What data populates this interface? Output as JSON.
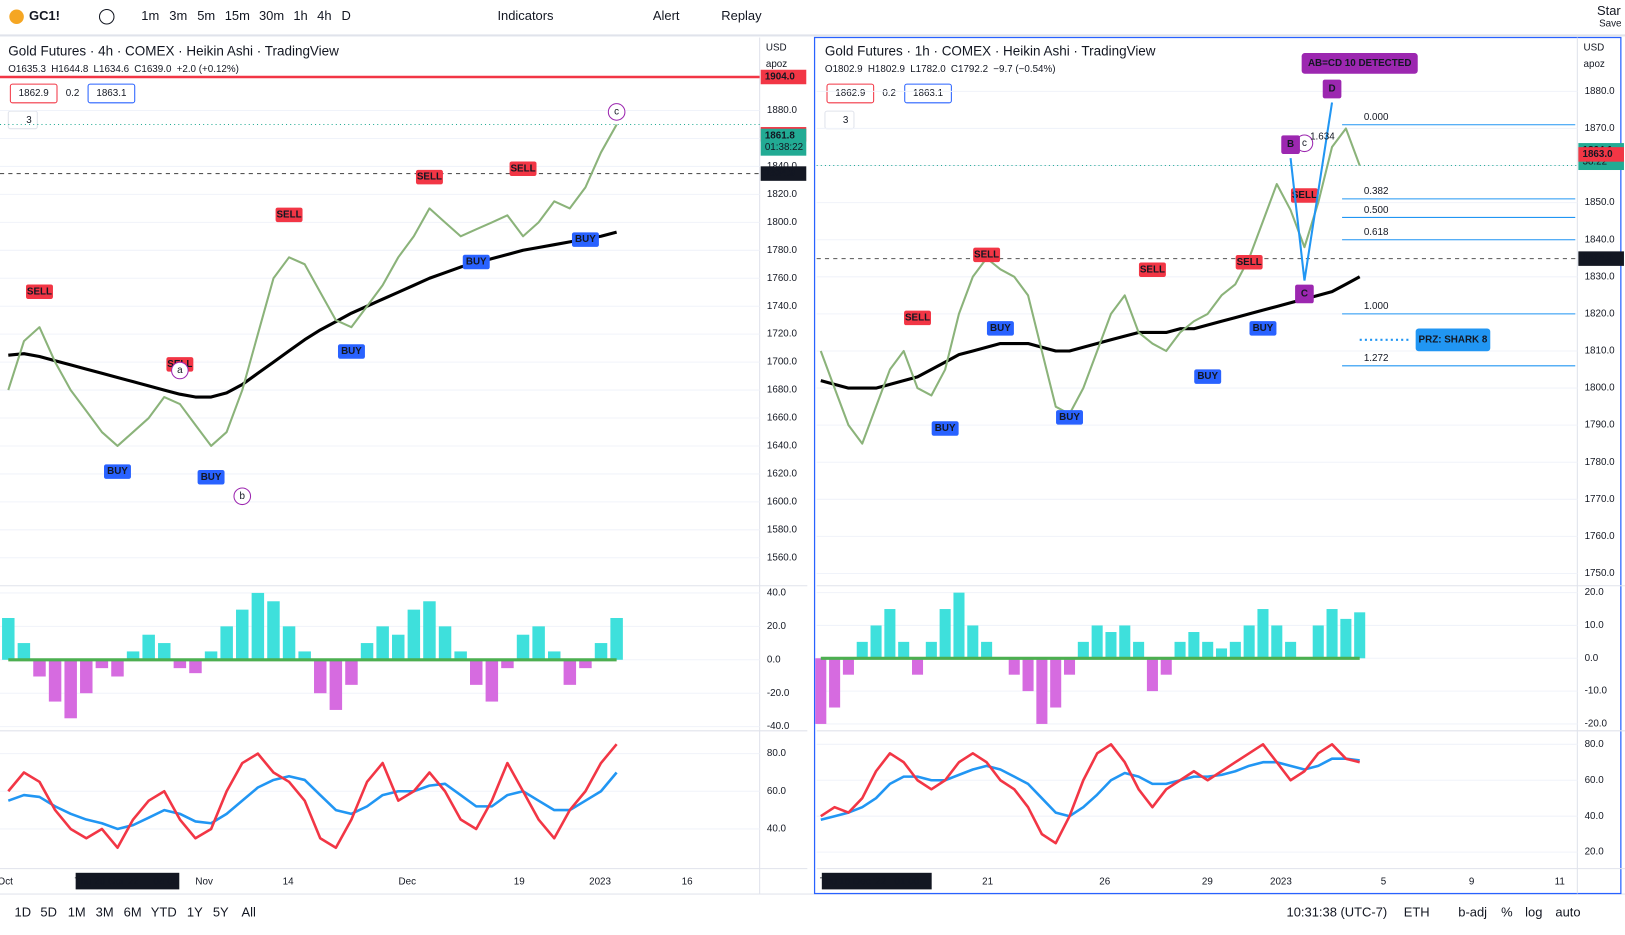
{
  "toolbar": {
    "symbol": "GC1!",
    "intervals": [
      "1m",
      "3m",
      "5m",
      "15m",
      "30m",
      "1h",
      "4h",
      "D"
    ],
    "indicators": "Indicators",
    "alert": "Alert",
    "replay": "Replay",
    "layout_name": "Star",
    "save": "Save"
  },
  "panels": [
    {
      "title": "Gold Futures · 4h · COMEX · Heikin Ashi · TradingView",
      "ohlc": [
        "O1635.3",
        "H1644.8",
        "L1634.6",
        "C1639.0",
        "+2.0 (+0.12%)"
      ],
      "boxes": [
        "1862.9",
        "0.2",
        "1863.1"
      ],
      "legend_count": "3",
      "currency": "USD",
      "scale_mode": "apoz",
      "price": {
        "ylim": [
          1540,
          1933
        ],
        "yticks": [
          {
            "value": 1560,
            "label": "1560.0"
          },
          {
            "value": 1580,
            "label": "1580.0"
          },
          {
            "value": 1600,
            "label": "1600.0"
          },
          {
            "value": 1620,
            "label": "1620.0"
          },
          {
            "value": 1640,
            "label": "1640.0"
          },
          {
            "value": 1660,
            "label": "1660.0"
          },
          {
            "value": 1680,
            "label": "1680.0"
          },
          {
            "value": 1700,
            "label": "1700.0"
          },
          {
            "value": 1720,
            "label": "1720.0"
          },
          {
            "value": 1740,
            "label": "1740.0"
          },
          {
            "value": 1760,
            "label": "1760.0"
          },
          {
            "value": 1780,
            "label": "1780.0"
          },
          {
            "value": 1800,
            "label": "1800.0"
          },
          {
            "value": 1820,
            "label": "1820.0"
          },
          {
            "value": 1840,
            "label": "1840.0"
          },
          {
            "value": 1860,
            "label": "1860.0"
          },
          {
            "value": 1880,
            "label": "1880.0"
          }
        ],
        "close": [
          1680,
          1715,
          1725,
          1700,
          1680,
          1665,
          1650,
          1640,
          1650,
          1660,
          1675,
          1670,
          1655,
          1640,
          1650,
          1680,
          1720,
          1760,
          1775,
          1770,
          1750,
          1730,
          1725,
          1740,
          1755,
          1775,
          1790,
          1810,
          1800,
          1790,
          1795,
          1800,
          1805,
          1790,
          1800,
          1815,
          1810,
          1825,
          1850,
          1870
        ],
        "ma": [
          1705,
          1706,
          1704,
          1701,
          1698,
          1695,
          1692,
          1689,
          1686,
          1683,
          1680,
          1677,
          1675,
          1675,
          1678,
          1684,
          1692,
          1700,
          1708,
          1716,
          1723,
          1729,
          1735,
          1740,
          1745,
          1750,
          1755,
          1760,
          1764,
          1768,
          1771,
          1774,
          1777,
          1780,
          1782,
          1784,
          1786,
          1788,
          1790,
          1793
        ]
      },
      "oscillator": {
        "ylim": [
          -42.5,
          44.3
        ],
        "yticks": [
          {
            "value": 40,
            "label": "40.0"
          },
          {
            "value": 20,
            "label": "20.0"
          },
          {
            "value": 0,
            "label": "0.0"
          },
          {
            "value": -20,
            "label": "-20.0"
          },
          {
            "value": -40,
            "label": "-40.0"
          }
        ],
        "values": [
          25,
          10,
          -10,
          -25,
          -35,
          -20,
          -5,
          -10,
          5,
          15,
          10,
          -5,
          -8,
          5,
          20,
          30,
          40,
          35,
          20,
          5,
          -20,
          -30,
          -15,
          10,
          20,
          15,
          30,
          35,
          20,
          5,
          -15,
          -25,
          -5,
          15,
          20,
          5,
          -15,
          -5,
          10,
          25
        ]
      },
      "rsi": {
        "ylim": [
          18.9,
          92.1
        ],
        "yticks": [
          {
            "value": 80,
            "label": "80.0"
          },
          {
            "value": 60,
            "label": "60.0"
          },
          {
            "value": 40,
            "label": "40.0"
          },
          {
            "value": 20,
            "label": "20.0"
          }
        ],
        "rsi": [
          60,
          70,
          65,
          50,
          40,
          35,
          40,
          30,
          45,
          55,
          60,
          45,
          35,
          40,
          60,
          75,
          80,
          70,
          65,
          55,
          35,
          30,
          45,
          65,
          75,
          55,
          60,
          70,
          60,
          45,
          40,
          55,
          75,
          60,
          45,
          35,
          50,
          60,
          75,
          85
        ],
        "signal": [
          55,
          58,
          57,
          52,
          48,
          45,
          43,
          40,
          42,
          46,
          50,
          48,
          44,
          43,
          48,
          55,
          62,
          66,
          68,
          66,
          58,
          50,
          48,
          52,
          58,
          60,
          60,
          63,
          64,
          58,
          52,
          52,
          58,
          60,
          55,
          50,
          50,
          55,
          60,
          70
        ]
      },
      "time_labels": [
        "Oct",
        "Thu 20 Oct '22",
        "04:00",
        "Nov",
        "14",
        "Dec",
        "19",
        "2023",
        "16"
      ],
      "signals": [
        {
          "label": "SELL",
          "bar": 2,
          "price": 1740
        },
        {
          "label": "BUY",
          "bar": 7,
          "price": 1632
        },
        {
          "label": "SELL",
          "bar": 11,
          "price": 1688
        },
        {
          "label": "BUY",
          "bar": 13,
          "price": 1628
        },
        {
          "label": "SELL",
          "bar": 18,
          "price": 1795
        },
        {
          "label": "BUY",
          "bar": 22,
          "price": 1718
        },
        {
          "label": "SELL",
          "bar": 27,
          "price": 1822
        },
        {
          "label": "BUY",
          "bar": 30,
          "price": 1782
        },
        {
          "label": "SELL",
          "bar": 33,
          "price": 1828
        },
        {
          "label": "BUY",
          "bar": 37,
          "price": 1798
        }
      ],
      "waves": [
        {
          "label": "a",
          "bar": 11,
          "price": 1694
        },
        {
          "label": "b",
          "bar": 15,
          "price": 1604
        },
        {
          "label": "c",
          "bar": 39,
          "price": 1879
        }
      ],
      "price_tags": [
        {
          "value": 1904.0,
          "label": "1904.0",
          "color": "#f23645"
        },
        {
          "value": 1863.0,
          "label": "1863.0",
          "color": "#f23645"
        },
        {
          "value": 1861.8,
          "label": "1861.8",
          "color": "#22ab94"
        },
        {
          "value": 1834.9,
          "label": "1834.9",
          "color": "#131722"
        }
      ],
      "countdown": "01:38:22"
    },
    {
      "title": "Gold Futures · 1h · COMEX · Heikin Ashi · TradingView",
      "ohlc": [
        "O1802.9",
        "H1802.9",
        "L1782.0",
        "C1792.2",
        "−9.7 (−0.54%)"
      ],
      "boxes": [
        "1862.9",
        "0.2",
        "1863.1"
      ],
      "legend_count": "3",
      "currency": "USD",
      "scale_mode": "apoz",
      "price": {
        "ylim": [
          1746.7,
          1894.8
        ],
        "yticks": [
          {
            "value": 1750,
            "label": "1750.0"
          },
          {
            "value": 1760,
            "label": "1760.0"
          },
          {
            "value": 1770,
            "label": "1770.0"
          },
          {
            "value": 1780,
            "label": "1780.0"
          },
          {
            "value": 1790,
            "label": "1790.0"
          },
          {
            "value": 1800,
            "label": "1800.0"
          },
          {
            "value": 1810,
            "label": "1810.0"
          },
          {
            "value": 1820,
            "label": "1820.0"
          },
          {
            "value": 1830,
            "label": "1830.0"
          },
          {
            "value": 1840,
            "label": "1840.0"
          },
          {
            "value": 1850,
            "label": "1850.0"
          },
          {
            "value": 1860,
            "label": "1860.0"
          },
          {
            "value": 1870,
            "label": "1870.0"
          },
          {
            "value": 1880,
            "label": "1880.0"
          }
        ],
        "close": [
          1810,
          1800,
          1790,
          1785,
          1795,
          1805,
          1810,
          1800,
          1798,
          1805,
          1820,
          1830,
          1835,
          1832,
          1830,
          1825,
          1810,
          1795,
          1793,
          1800,
          1810,
          1820,
          1825,
          1815,
          1812,
          1810,
          1815,
          1818,
          1820,
          1825,
          1828,
          1835,
          1845,
          1855,
          1848,
          1838,
          1850,
          1865,
          1870,
          1860
        ],
        "ma": [
          1802,
          1801,
          1800,
          1800,
          1800,
          1801,
          1802,
          1803,
          1805,
          1807,
          1809,
          1810,
          1811,
          1812,
          1812,
          1812,
          1811,
          1810,
          1810,
          1811,
          1812,
          1813,
          1814,
          1815,
          1815,
          1815,
          1816,
          1816,
          1817,
          1818,
          1819,
          1820,
          1821,
          1822,
          1823,
          1824,
          1825,
          1826,
          1828,
          1830
        ]
      },
      "oscillator": {
        "ylim": [
          -22.1,
          22.1
        ],
        "yticks": [
          {
            "value": 20,
            "label": "20.0"
          },
          {
            "value": 10,
            "label": "10.0"
          },
          {
            "value": 0,
            "label": "0.0"
          },
          {
            "value": -10,
            "label": "-10.0"
          },
          {
            "value": -20,
            "label": "-20.0"
          }
        ],
        "values": [
          -20,
          -15,
          -5,
          5,
          10,
          15,
          5,
          -5,
          5,
          15,
          20,
          10,
          5,
          0,
          -5,
          -10,
          -20,
          -15,
          -5,
          5,
          10,
          8,
          10,
          5,
          -10,
          -5,
          5,
          8,
          5,
          3,
          5,
          10,
          15,
          10,
          5,
          0,
          10,
          15,
          12,
          14
        ]
      },
      "rsi": {
        "ylim": [
          10.8,
          87.5
        ],
        "yticks": [
          {
            "value": 80,
            "label": "80.0"
          },
          {
            "value": 60,
            "label": "60.0"
          },
          {
            "value": 40,
            "label": "40.0"
          },
          {
            "value": 20,
            "label": "20.0"
          }
        ],
        "rsi": [
          40,
          45,
          42,
          50,
          65,
          75,
          70,
          60,
          55,
          60,
          70,
          75,
          70,
          60,
          55,
          45,
          30,
          25,
          40,
          60,
          75,
          80,
          70,
          55,
          45,
          55,
          60,
          65,
          60,
          65,
          70,
          75,
          80,
          70,
          60,
          65,
          75,
          80,
          72,
          70
        ],
        "signal": [
          38,
          40,
          42,
          45,
          50,
          58,
          62,
          62,
          60,
          60,
          63,
          66,
          68,
          66,
          62,
          58,
          50,
          42,
          40,
          45,
          52,
          60,
          64,
          62,
          58,
          58,
          60,
          62,
          62,
          63,
          65,
          68,
          70,
          70,
          68,
          66,
          68,
          72,
          72,
          71
        ]
      },
      "time_labels": [
        "Thu 15 Dec '22",
        "01:00",
        "21",
        "26",
        "29",
        "2023",
        "5",
        "9",
        "11"
      ],
      "signals": [
        {
          "label": "SELL",
          "bar": 7,
          "price": 1815
        },
        {
          "label": "BUY",
          "bar": 9,
          "price": 1793
        },
        {
          "label": "SELL",
          "bar": 12,
          "price": 1832
        },
        {
          "label": "BUY",
          "bar": 13,
          "price": 1820
        },
        {
          "label": "BUY",
          "bar": 18,
          "price": 1796
        },
        {
          "label": "SELL",
          "bar": 24,
          "price": 1828
        },
        {
          "label": "BUY",
          "bar": 28,
          "price": 1807
        },
        {
          "label": "SELL",
          "bar": 31,
          "price": 1830
        },
        {
          "label": "BUY",
          "bar": 32,
          "price": 1820
        },
        {
          "label": "SELL",
          "bar": 35,
          "price": 1848
        }
      ],
      "waves": [
        {
          "label": "c",
          "bar": 35,
          "price": 1866
        }
      ],
      "price_tags": [
        {
          "value": 1864.1,
          "label": "1864.1",
          "color": "#22ab94"
        },
        {
          "value": 1863.0,
          "label": "1863.0",
          "color": "#f23645"
        },
        {
          "value": 1834.9,
          "label": "1834.9",
          "color": "#131722"
        }
      ],
      "countdown": "38:22",
      "harmonic": {
        "banner": "AB=CD 10 DETECTED",
        "ratio": "1.634",
        "prz": "PRZ: SHARK 8",
        "prz_price": 1813,
        "points": [
          {
            "label": "B",
            "bar": 34,
            "price": 1862
          },
          {
            "label": "C",
            "bar": 35,
            "price": 1829
          },
          {
            "label": "D",
            "bar": 37,
            "price": 1877
          }
        ],
        "fib": [
          {
            "label": "0.000",
            "price": 1871
          },
          {
            "label": "0.382",
            "price": 1851
          },
          {
            "label": "0.500",
            "price": 1846
          },
          {
            "label": "0.618",
            "price": 1840
          },
          {
            "label": "1.000",
            "price": 1820
          },
          {
            "label": "1.272",
            "price": 1806
          }
        ]
      }
    }
  ],
  "bottom_bar": {
    "ranges": [
      "1D",
      "5D",
      "1M",
      "3M",
      "6M",
      "YTD",
      "1Y",
      "5Y",
      "All"
    ],
    "clock": "10:31:38 (UTC-7)",
    "session": "ETH",
    "adjust": "b-adj",
    "percent": "%",
    "log": "log",
    "auto": "auto"
  }
}
